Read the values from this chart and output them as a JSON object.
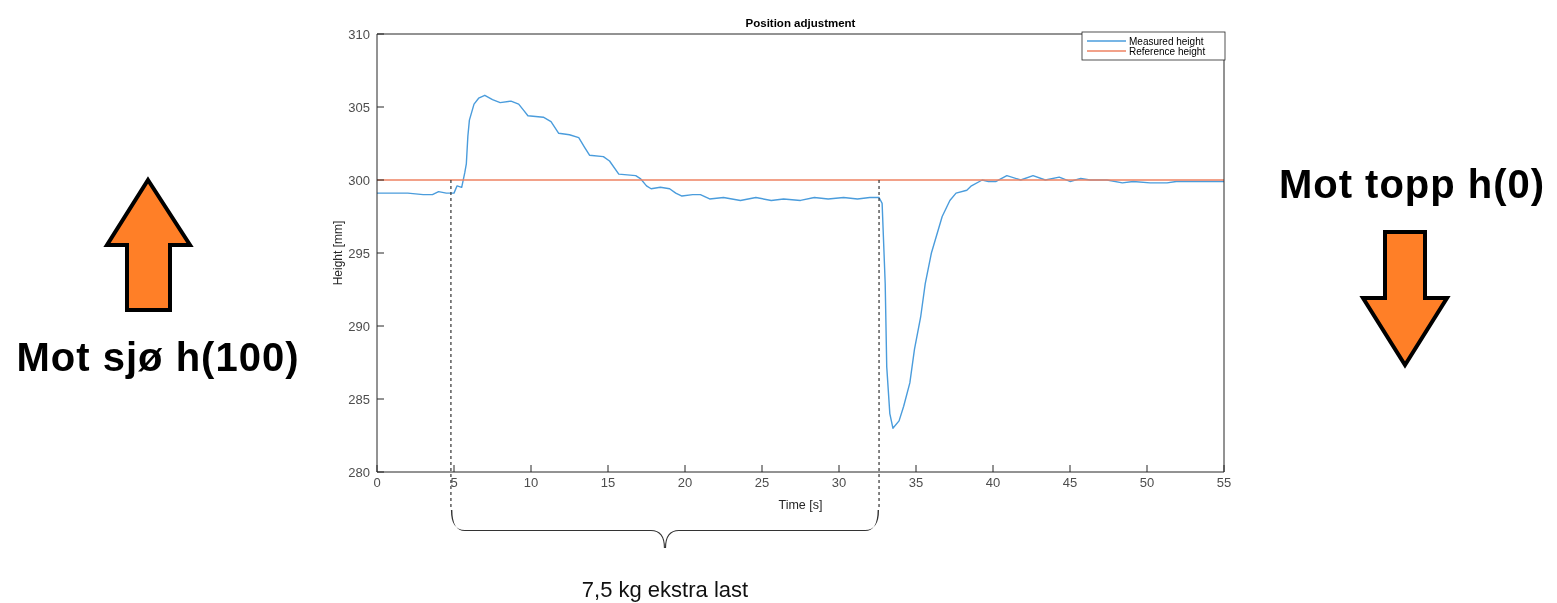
{
  "chart_data": {
    "type": "line",
    "title": "Position adjustment",
    "xlabel": "Time [s]",
    "ylabel": "Height [mm]",
    "annotations": [
      "Mot sjø h(100)",
      "Mot topp h(0)",
      "7,5 kg ekstra last"
    ],
    "series": [
      {
        "name": "Measured height",
        "color": "#4a9cdc",
        "x": [
          0,
          1,
          2,
          3,
          3.6,
          4.0,
          4.5,
          5.0,
          5.2,
          5.5,
          5.7,
          5.8,
          5.9,
          6.0,
          6.3,
          6.6,
          7.0,
          7.5,
          8.0,
          8.7,
          9.2,
          9.5,
          9.8,
          10.8,
          11.3,
          11.8,
          12.5,
          13.1,
          13.5,
          13.8,
          14.7,
          15.1,
          15.7,
          16.8,
          17.1,
          17.5,
          17.8,
          18.4,
          19.0,
          19.4,
          19.8,
          20.5,
          21.0,
          21.6,
          22.5,
          23.6,
          24.6,
          25.6,
          26.4,
          27.5,
          28.4,
          29.3,
          30.3,
          31.2,
          32.0,
          32.6,
          32.8,
          33.0,
          33.1,
          33.3,
          33.5,
          33.9,
          34.2,
          34.6,
          34.9,
          35.3,
          35.6,
          36.0,
          36.7,
          37.2,
          37.6,
          38.3,
          38.6,
          39.3,
          39.7,
          40.2,
          40.9,
          41.8,
          42.6,
          43.4,
          44.3,
          45.0,
          45.7,
          46.3,
          47.4,
          48.4,
          49.1,
          50.2,
          51.3,
          51.9,
          53.2,
          55
        ],
        "values": [
          299.1,
          299.1,
          299.1,
          299.0,
          299.0,
          299.2,
          299.1,
          299.1,
          299.6,
          299.5,
          300.5,
          301.1,
          303.0,
          304.1,
          305.2,
          305.6,
          305.8,
          305.5,
          305.3,
          305.4,
          305.2,
          304.8,
          304.4,
          304.3,
          304.0,
          303.2,
          303.1,
          302.9,
          302.2,
          301.7,
          301.6,
          301.3,
          300.4,
          300.3,
          300.1,
          299.6,
          299.4,
          299.5,
          299.4,
          299.1,
          298.9,
          299.0,
          299.0,
          298.7,
          298.8,
          298.6,
          298.8,
          298.6,
          298.7,
          298.6,
          298.8,
          298.7,
          298.8,
          298.7,
          298.8,
          298.8,
          298.4,
          292.9,
          287.2,
          284.0,
          283.0,
          283.5,
          284.5,
          286.1,
          288.4,
          290.6,
          292.9,
          295.0,
          297.5,
          298.6,
          299.1,
          299.3,
          299.6,
          300.0,
          299.9,
          299.9,
          300.3,
          300.0,
          300.3,
          300.0,
          300.2,
          299.9,
          300.1,
          300.0,
          300.0,
          299.8,
          299.9,
          299.8,
          299.8,
          299.9,
          299.9,
          299.9
        ]
      },
      {
        "name": "Reference height",
        "color": "#ee8262",
        "x": [
          0,
          55
        ],
        "values": [
          300,
          300
        ]
      }
    ],
    "xlim": [
      0,
      55
    ],
    "xticks": [
      0,
      5,
      10,
      15,
      20,
      25,
      30,
      35,
      40,
      45,
      50,
      55
    ],
    "ylim": [
      280,
      310
    ],
    "yticks": [
      280,
      285,
      290,
      295,
      300,
      305,
      310
    ],
    "ref_lines": [
      {
        "axis": "x",
        "value": 4.8,
        "color": "#333333",
        "line_style": "dashed"
      },
      {
        "axis": "x",
        "value": 32.6,
        "color": "#333333",
        "line_style": "dashed"
      }
    ],
    "legend": "top right"
  }
}
